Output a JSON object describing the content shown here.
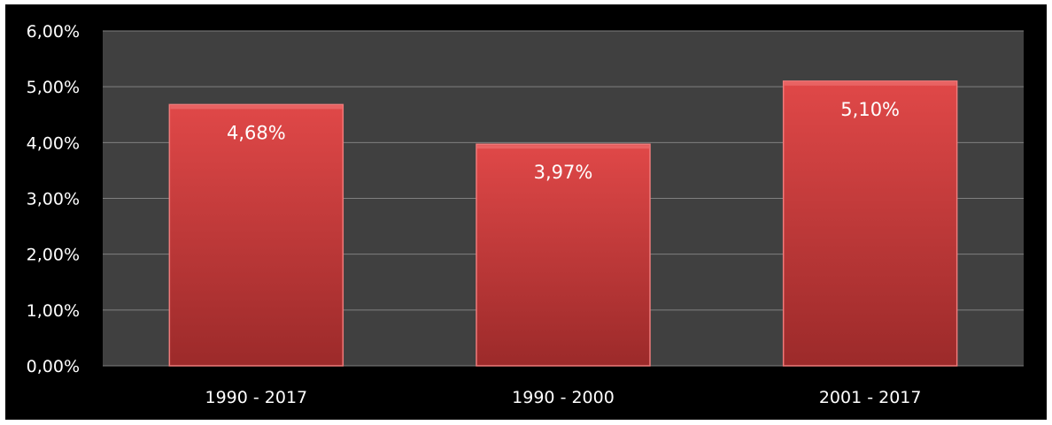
{
  "chart_data": {
    "type": "bar",
    "title": "",
    "xlabel": "",
    "ylabel": "",
    "categories": [
      "1990 - 2017",
      "1990 - 2000",
      "2001 - 2017"
    ],
    "values": [
      4.68,
      3.97,
      5.1
    ],
    "data_labels": [
      "4,68%",
      "3,97%",
      "5,10%"
    ],
    "ylim": [
      0,
      6
    ],
    "y_ticks": [
      0,
      1,
      2,
      3,
      4,
      5,
      6
    ],
    "y_tick_labels": [
      "0,00%",
      "1,00%",
      "2,00%",
      "3,00%",
      "4,00%",
      "5,00%",
      "6,00%"
    ],
    "grid": true,
    "legend": "none",
    "colors": {
      "frame_background": "#000000",
      "plot_background": "#404040",
      "gridline": "#808080",
      "bar_top": "#e04848",
      "bar_bottom": "#9c2a2a",
      "bar_edge": "#f07a7a",
      "text": "#ffffff"
    }
  }
}
